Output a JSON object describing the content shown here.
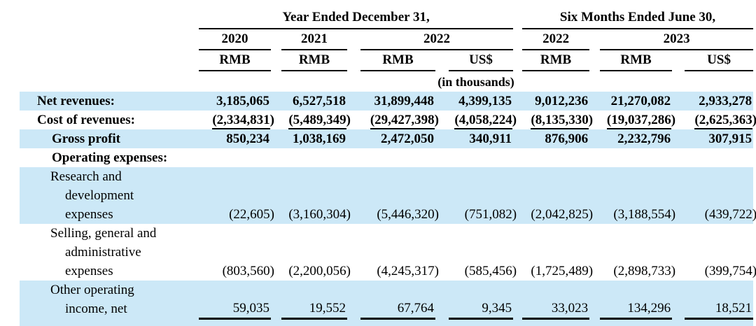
{
  "table": {
    "groups": {
      "year_ended": "Year Ended December 31,",
      "six_months": "Six Months Ended June 30,"
    },
    "years": [
      "2020",
      "2021",
      "2022",
      "2022",
      "2023"
    ],
    "currencies": [
      "RMB",
      "RMB",
      "RMB",
      "US$",
      "RMB",
      "RMB",
      "US$"
    ],
    "note": "(in thousands)",
    "colors": {
      "stripe_blue": "#cce8f7",
      "text": "#000000"
    },
    "rows": [
      {
        "label": "Net revenues:",
        "values": [
          "3,185,065",
          "6,527,518",
          "31,899,448",
          "4,399,135",
          "9,012,236",
          "21,270,082",
          "2,933,278"
        ]
      },
      {
        "label": "Cost of revenues:",
        "values": [
          "(2,334,831)",
          "(5,489,349)",
          "(29,427,398)",
          "(4,058,224)",
          "(8,135,330)",
          "(19,037,286)",
          "(2,625,363)"
        ]
      },
      {
        "label": "Gross profit",
        "values": [
          "850,234",
          "1,038,169",
          "2,472,050",
          "340,911",
          "876,906",
          "2,232,796",
          "307,915"
        ]
      },
      {
        "label": "Operating expenses:",
        "values": [
          "",
          "",
          "",
          "",
          "",
          "",
          ""
        ]
      },
      {
        "label": "Research and\ndevelopment\nexpenses",
        "values": [
          "(22,605)",
          "(3,160,304)",
          "(5,446,320)",
          "(751,082)",
          "(2,042,825)",
          "(3,188,554)",
          "(439,722)"
        ]
      },
      {
        "label": "Selling, general and\nadministrative\nexpenses",
        "values": [
          "(803,560)",
          "(2,200,056)",
          "(4,245,317)",
          "(585,456)",
          "(1,725,489)",
          "(2,898,733)",
          "(399,754)"
        ]
      },
      {
        "label": "Other operating\nincome, net",
        "values": [
          "59,035",
          "19,552",
          "67,764",
          "9,345",
          "33,023",
          "134,296",
          "18,521"
        ]
      }
    ]
  }
}
